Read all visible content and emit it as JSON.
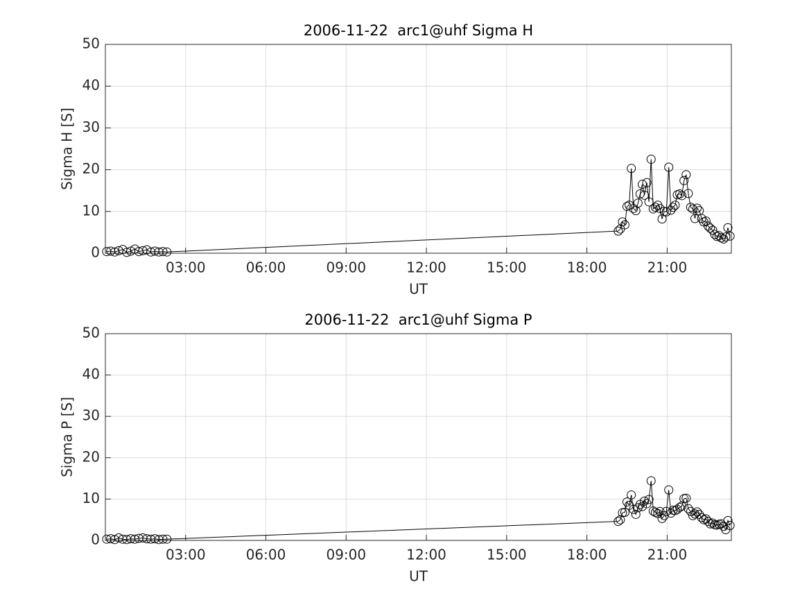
{
  "chart_data": [
    {
      "type": "line",
      "title": "2006-11-22  arc1@uhf Sigma H",
      "xlabel": "UT",
      "ylabel": "Sigma H [S]",
      "color": "#000000",
      "marker": "circle",
      "grid": true,
      "x": [
        0.05,
        0.2,
        0.35,
        0.5,
        0.65,
        0.8,
        0.95,
        1.1,
        1.25,
        1.4,
        1.55,
        1.7,
        1.85,
        2.0,
        2.15,
        2.3,
        19.17,
        19.25,
        19.33,
        19.42,
        19.5,
        19.58,
        19.66,
        19.74,
        19.83,
        19.91,
        19.99,
        20.07,
        20.15,
        20.24,
        20.32,
        20.4,
        20.48,
        20.56,
        20.65,
        20.73,
        20.81,
        20.89,
        20.97,
        21.06,
        21.14,
        21.22,
        21.3,
        21.38,
        21.47,
        21.55,
        21.63,
        21.71,
        21.79,
        21.88,
        21.96,
        22.04,
        22.12,
        22.2,
        22.29,
        22.37,
        22.45,
        22.53,
        22.61,
        22.7,
        22.78,
        22.86,
        22.94,
        23.02,
        23.11,
        23.19,
        23.27,
        23.35
      ],
      "values": [
        0.4,
        0.5,
        0.3,
        0.6,
        0.9,
        0.2,
        0.5,
        1.0,
        0.4,
        0.6,
        0.8,
        0.3,
        0.5,
        0.3,
        0.4,
        0.3,
        5.3,
        5.8,
        7.5,
        6.8,
        11.2,
        11.5,
        20.3,
        10.7,
        10.2,
        12,
        14.2,
        16.5,
        13.9,
        16.9,
        12.3,
        22.5,
        10.6,
        11.0,
        11.5,
        10.7,
        8.2,
        10.0,
        9.9,
        20.6,
        10.3,
        11.0,
        11.5,
        14,
        14.2,
        13.8,
        17.4,
        18.8,
        14.3,
        11.0,
        10.6,
        8.3,
        10.8,
        10.2,
        8.3,
        7.5,
        7.7,
        6.5,
        6.0,
        5.5,
        4.5,
        4.0,
        4.2,
        3.7,
        3.4,
        3.9,
        6.1,
        4.1
      ],
      "xlim": [
        0,
        23.4
      ],
      "ylim": [
        0,
        50
      ],
      "yticks": [
        0,
        10,
        20,
        30,
        40,
        50
      ],
      "xticks": [
        {
          "value": 3,
          "label": "03:00"
        },
        {
          "value": 6,
          "label": "06:00"
        },
        {
          "value": 9,
          "label": "09:00"
        },
        {
          "value": 12,
          "label": "12:00"
        },
        {
          "value": 15,
          "label": "15:00"
        },
        {
          "value": 18,
          "label": "18:00"
        },
        {
          "value": 21,
          "label": "21:00"
        }
      ]
    },
    {
      "type": "line",
      "title": "2006-11-22  arc1@uhf Sigma P",
      "xlabel": "UT",
      "ylabel": "Sigma P [S]",
      "color": "#000000",
      "marker": "circle",
      "grid": true,
      "x": [
        0.05,
        0.2,
        0.35,
        0.5,
        0.65,
        0.8,
        0.95,
        1.1,
        1.25,
        1.4,
        1.55,
        1.7,
        1.85,
        2.0,
        2.15,
        2.3,
        19.17,
        19.25,
        19.33,
        19.42,
        19.5,
        19.58,
        19.66,
        19.74,
        19.83,
        19.91,
        19.99,
        20.07,
        20.15,
        20.24,
        20.32,
        20.4,
        20.48,
        20.56,
        20.65,
        20.73,
        20.81,
        20.89,
        20.97,
        21.06,
        21.14,
        21.22,
        21.3,
        21.38,
        21.47,
        21.55,
        21.63,
        21.71,
        21.79,
        21.88,
        21.96,
        22.04,
        22.12,
        22.2,
        22.29,
        22.37,
        22.45,
        22.53,
        22.61,
        22.7,
        22.78,
        22.86,
        22.94,
        23.02,
        23.11,
        23.19,
        23.27,
        23.35
      ],
      "values": [
        0.3,
        0.4,
        0.2,
        0.6,
        0.3,
        0.2,
        0.4,
        0.3,
        0.5,
        0.6,
        0.4,
        0.3,
        0.4,
        0.2,
        0.3,
        0.3,
        4.6,
        5.0,
        6.7,
        6.8,
        9.3,
        8.5,
        11.0,
        7.5,
        6.3,
        7.9,
        8.7,
        8.2,
        9.5,
        8.9,
        9.9,
        14.4,
        7.1,
        6.8,
        6.5,
        7.0,
        5.3,
        6.0,
        7.0,
        12.2,
        6.6,
        7.3,
        7.2,
        7.5,
        8.0,
        8.3,
        10.1,
        10.2,
        7.7,
        7.0,
        6.0,
        6.4,
        6.9,
        6.3,
        5.5,
        5.0,
        5.2,
        4.6,
        4.0,
        4.2,
        3.8,
        3.7,
        3.9,
        4.0,
        3.4,
        2.6,
        4.8,
        3.6
      ],
      "xlim": [
        0,
        23.4
      ],
      "ylim": [
        0,
        50
      ],
      "yticks": [
        0,
        10,
        20,
        30,
        40,
        50
      ],
      "xticks": [
        {
          "value": 3,
          "label": "03:00"
        },
        {
          "value": 6,
          "label": "06:00"
        },
        {
          "value": 9,
          "label": "09:00"
        },
        {
          "value": 12,
          "label": "12:00"
        },
        {
          "value": 15,
          "label": "15:00"
        },
        {
          "value": 18,
          "label": "18:00"
        },
        {
          "value": 21,
          "label": "21:00"
        }
      ]
    }
  ]
}
